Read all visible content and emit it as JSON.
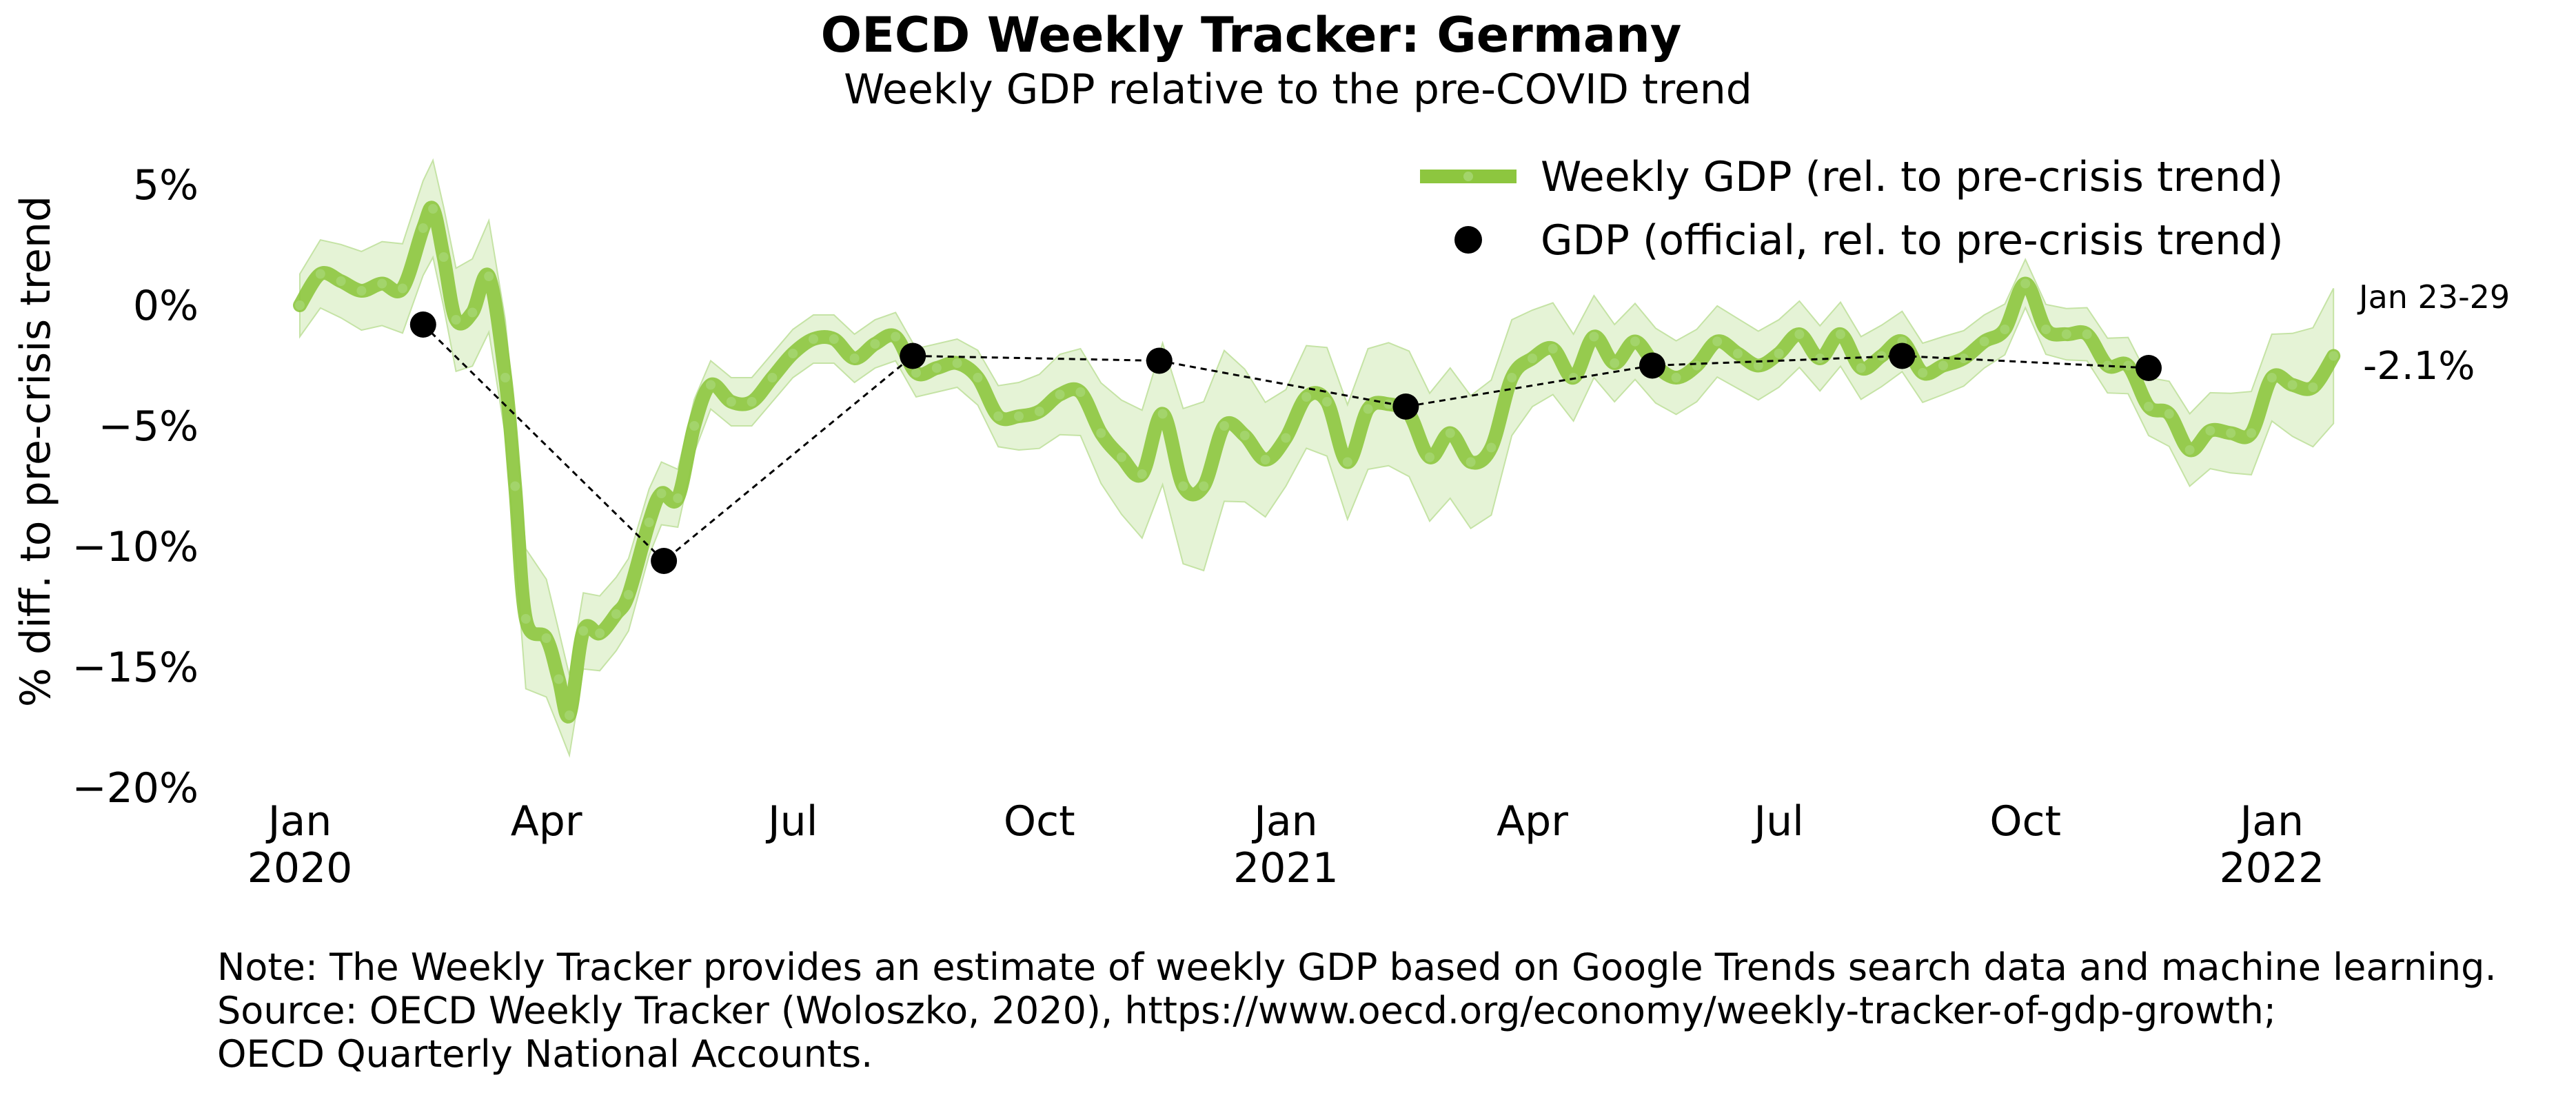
{
  "chart_data": {
    "type": "line",
    "title": "OECD Weekly Tracker: Germany",
    "subtitle": "Weekly GDP relative to the pre-COVID trend",
    "ylabel": "% diff. to pre-crisis trend",
    "xlabel": "",
    "ylim": [
      -20,
      6
    ],
    "yticks": [
      5,
      0,
      -5,
      -10,
      -15,
      -20
    ],
    "ytick_labels": [
      "5%",
      "0%",
      "−5%",
      "−10%",
      "−15%",
      "−20%"
    ],
    "xticks": [
      {
        "x": 0,
        "line1": "Jan",
        "line2": "2020"
      },
      {
        "x": 3,
        "line1": "Apr",
        "line2": ""
      },
      {
        "x": 6,
        "line1": "Jul",
        "line2": ""
      },
      {
        "x": 9,
        "line1": "Oct",
        "line2": ""
      },
      {
        "x": 12,
        "line1": "Jan",
        "line2": "2021"
      },
      {
        "x": 15,
        "line1": "Apr",
        "line2": ""
      },
      {
        "x": 18,
        "line1": "Jul",
        "line2": ""
      },
      {
        "x": 21,
        "line1": "Oct",
        "line2": ""
      },
      {
        "x": 24,
        "line1": "Jan",
        "line2": "2022"
      }
    ],
    "x_unit": "months since Jan 2020",
    "legend": {
      "position": "top-right",
      "entries": [
        "Weekly GDP (rel. to pre-crisis trend)",
        "GDP (official, rel. to pre-crisis trend)"
      ]
    },
    "colors": {
      "weekly": "#8dc63f",
      "band": "#dcefc8",
      "official": "#000000",
      "connector": "#000000"
    },
    "series": [
      {
        "name": "Weekly GDP (rel. to pre-crisis trend)",
        "points": [
          [
            0.0,
            0.0
          ],
          [
            0.25,
            1.3
          ],
          [
            0.5,
            1.0
          ],
          [
            0.75,
            0.6
          ],
          [
            1.0,
            0.9
          ],
          [
            1.25,
            0.7
          ],
          [
            1.5,
            3.2
          ],
          [
            1.62,
            4.0
          ],
          [
            1.75,
            2.0
          ],
          [
            1.9,
            -0.6
          ],
          [
            2.1,
            -0.3
          ],
          [
            2.3,
            1.2
          ],
          [
            2.5,
            -3.0
          ],
          [
            2.62,
            -7.5
          ],
          [
            2.75,
            -13.0
          ],
          [
            3.0,
            -13.8
          ],
          [
            3.15,
            -15.5
          ],
          [
            3.28,
            -17.0
          ],
          [
            3.45,
            -13.5
          ],
          [
            3.65,
            -13.6
          ],
          [
            3.85,
            -12.8
          ],
          [
            4.0,
            -12.0
          ],
          [
            4.25,
            -9.0
          ],
          [
            4.4,
            -7.8
          ],
          [
            4.6,
            -8.0
          ],
          [
            4.8,
            -5.0
          ],
          [
            5.0,
            -3.3
          ],
          [
            5.25,
            -4.0
          ],
          [
            5.5,
            -4.0
          ],
          [
            5.75,
            -3.0
          ],
          [
            6.0,
            -2.0
          ],
          [
            6.25,
            -1.4
          ],
          [
            6.5,
            -1.4
          ],
          [
            6.75,
            -2.2
          ],
          [
            7.0,
            -1.6
          ],
          [
            7.25,
            -1.3
          ],
          [
            7.5,
            -2.8
          ],
          [
            7.75,
            -2.6
          ],
          [
            8.0,
            -2.4
          ],
          [
            8.25,
            -3.0
          ],
          [
            8.5,
            -4.6
          ],
          [
            8.75,
            -4.6
          ],
          [
            9.0,
            -4.4
          ],
          [
            9.25,
            -3.7
          ],
          [
            9.5,
            -3.6
          ],
          [
            9.75,
            -5.3
          ],
          [
            10.0,
            -6.3
          ],
          [
            10.25,
            -7.0
          ],
          [
            10.5,
            -4.5
          ],
          [
            10.75,
            -7.5
          ],
          [
            11.0,
            -7.5
          ],
          [
            11.25,
            -5.0
          ],
          [
            11.5,
            -5.4
          ],
          [
            11.75,
            -6.4
          ],
          [
            12.0,
            -5.5
          ],
          [
            12.25,
            -3.8
          ],
          [
            12.5,
            -4.0
          ],
          [
            12.75,
            -6.5
          ],
          [
            13.0,
            -4.3
          ],
          [
            13.25,
            -4.1
          ],
          [
            13.5,
            -4.5
          ],
          [
            13.75,
            -6.3
          ],
          [
            14.0,
            -5.3
          ],
          [
            14.25,
            -6.5
          ],
          [
            14.5,
            -5.9
          ],
          [
            14.75,
            -3.0
          ],
          [
            15.0,
            -2.2
          ],
          [
            15.25,
            -1.8
          ],
          [
            15.5,
            -3.0
          ],
          [
            15.75,
            -1.3
          ],
          [
            16.0,
            -2.4
          ],
          [
            16.25,
            -1.5
          ],
          [
            16.5,
            -2.5
          ],
          [
            16.75,
            -3.0
          ],
          [
            17.0,
            -2.5
          ],
          [
            17.25,
            -1.5
          ],
          [
            17.5,
            -2.0
          ],
          [
            17.75,
            -2.5
          ],
          [
            18.0,
            -2.0
          ],
          [
            18.25,
            -1.2
          ],
          [
            18.5,
            -2.2
          ],
          [
            18.75,
            -1.2
          ],
          [
            19.0,
            -2.6
          ],
          [
            19.25,
            -2.1
          ],
          [
            19.5,
            -1.5
          ],
          [
            19.75,
            -2.8
          ],
          [
            20.0,
            -2.5
          ],
          [
            20.25,
            -2.2
          ],
          [
            20.5,
            -1.5
          ],
          [
            20.75,
            -1.0
          ],
          [
            21.0,
            0.9
          ],
          [
            21.25,
            -1.0
          ],
          [
            21.5,
            -1.2
          ],
          [
            21.75,
            -1.2
          ],
          [
            22.0,
            -2.5
          ],
          [
            22.25,
            -2.5
          ],
          [
            22.5,
            -4.2
          ],
          [
            22.75,
            -4.5
          ],
          [
            23.0,
            -6.0
          ],
          [
            23.25,
            -5.2
          ],
          [
            23.5,
            -5.3
          ],
          [
            23.75,
            -5.3
          ],
          [
            24.0,
            -3.0
          ],
          [
            24.25,
            -3.3
          ],
          [
            24.5,
            -3.4
          ],
          [
            24.75,
            -2.1
          ]
        ]
      },
      {
        "name": "GDP (official, rel. to pre-crisis trend)",
        "points": [
          [
            1.5,
            -0.8
          ],
          [
            4.43,
            -10.6
          ],
          [
            7.46,
            -2.1
          ],
          [
            10.46,
            -2.3
          ],
          [
            13.46,
            -4.2
          ],
          [
            16.46,
            -2.5
          ],
          [
            19.5,
            -2.1
          ],
          [
            22.5,
            -2.6
          ]
        ]
      }
    ],
    "band_halfwidth": [
      [
        0.0,
        1.3
      ],
      [
        2.5,
        2.4
      ],
      [
        2.8,
        3.0
      ],
      [
        3.3,
        1.6
      ],
      [
        4.0,
        1.5
      ],
      [
        5.0,
        1.0
      ],
      [
        8.0,
        1.0
      ],
      [
        9.5,
        1.8
      ],
      [
        11.0,
        3.5
      ],
      [
        12.0,
        2.0
      ],
      [
        13.0,
        2.5
      ],
      [
        14.5,
        2.8
      ],
      [
        15.0,
        2.0
      ],
      [
        16.0,
        1.6
      ],
      [
        20.0,
        1.2
      ],
      [
        21.0,
        1.0
      ],
      [
        22.5,
        1.2
      ],
      [
        23.0,
        1.5
      ],
      [
        24.0,
        1.8
      ],
      [
        24.75,
        2.8
      ]
    ],
    "annotations": [
      {
        "label": "Jan 23-29"
      },
      {
        "label": "-2.1%"
      }
    ]
  },
  "notes": [
    "Note: The Weekly Tracker provides an estimate of weekly GDP based on Google Trends search data and machine learning.",
    "Source: OECD Weekly Tracker (Woloszko, 2020), https://www.oecd.org/economy/weekly-tracker-of-gdp-growth;",
    "OECD Quarterly National Accounts."
  ]
}
